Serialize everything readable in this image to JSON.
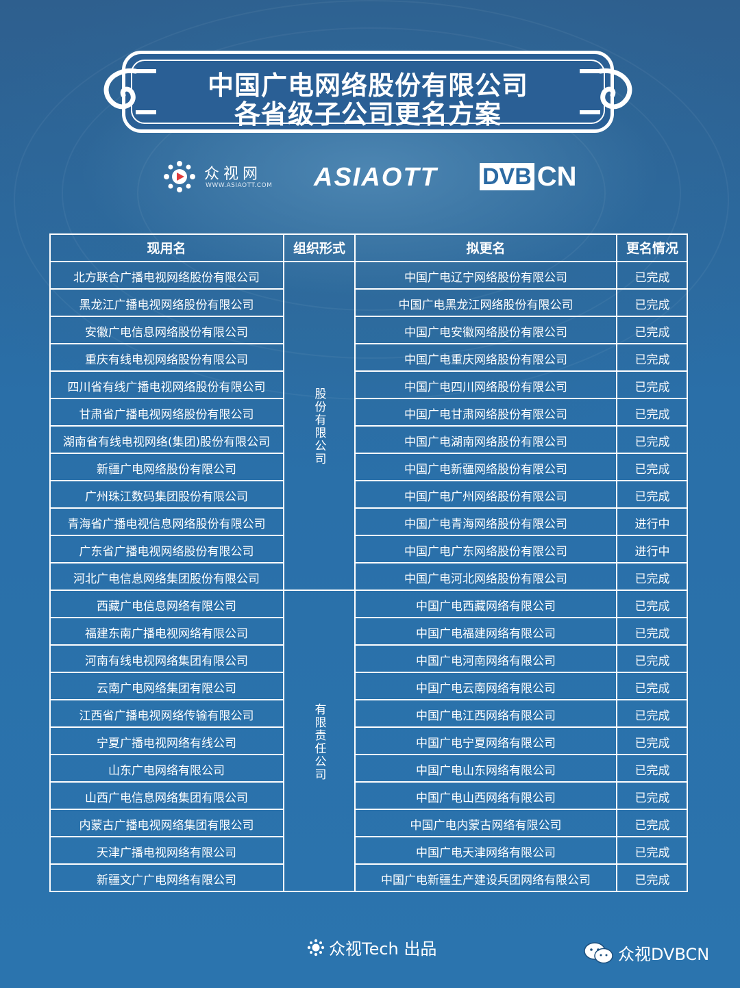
{
  "title": {
    "line1": "中国广电网络股份有限公司",
    "line2": "各省级子公司更名方案"
  },
  "logos": {
    "zsw_name": "众视网",
    "zsw_url": "WWW.ASIAOTT.COM",
    "asiaott": "ASIAOTT",
    "dvb": "DVB",
    "cn": "CN"
  },
  "table": {
    "headers": [
      "现用名",
      "组织形式",
      "拟更名",
      "更名情况"
    ],
    "org_groups": [
      {
        "label": "股份有限公司",
        "rows": 12
      },
      {
        "label": "有限责任公司",
        "rows": 11
      }
    ],
    "rows": [
      {
        "current": "北方联合广播电视网络股份有限公司",
        "new": "中国广电辽宁网络股份有限公司",
        "status": "已完成"
      },
      {
        "current": "黑龙江广播电视网络股份有限公司",
        "new": "中国广电黑龙江网络股份有限公司",
        "status": "已完成"
      },
      {
        "current": "安徽广电信息网络股份有限公司",
        "new": "中国广电安徽网络股份有限公司",
        "status": "已完成"
      },
      {
        "current": "重庆有线电视网络股份有限公司",
        "new": "中国广电重庆网络股份有限公司",
        "status": "已完成"
      },
      {
        "current": "四川省有线广播电视网络股份有限公司",
        "new": "中国广电四川网络股份有限公司",
        "status": "已完成"
      },
      {
        "current": "甘肃省广播电视网络股份有限公司",
        "new": "中国广电甘肃网络股份有限公司",
        "status": "已完成"
      },
      {
        "current": "湖南省有线电视网络(集团)股份有限公司",
        "new": "中国广电湖南网络股份有限公司",
        "status": "已完成"
      },
      {
        "current": "新疆广电网络股份有限公司",
        "new": "中国广电新疆网络股份有限公司",
        "status": "已完成"
      },
      {
        "current": "广州珠江数码集团股份有限公司",
        "new": "中国广电广州网络股份有限公司",
        "status": "已完成"
      },
      {
        "current": "青海省广播电视信息网络股份有限公司",
        "new": "中国广电青海网络股份有限公司",
        "status": "进行中"
      },
      {
        "current": "广东省广播电视网络股份有限公司",
        "new": "中国广电广东网络股份有限公司",
        "status": "进行中"
      },
      {
        "current": "河北广电信息网络集团股份有限公司",
        "new": "中国广电河北网络股份有限公司",
        "status": "已完成"
      },
      {
        "current": "西藏广电信息网络有限公司",
        "new": "中国广电西藏网络有限公司",
        "status": "已完成"
      },
      {
        "current": "福建东南广播电视网络有限公司",
        "new": "中国广电福建网络有限公司",
        "status": "已完成"
      },
      {
        "current": "河南有线电视网络集团有限公司",
        "new": "中国广电河南网络有限公司",
        "status": "已完成"
      },
      {
        "current": "云南广电网络集团有限公司",
        "new": "中国广电云南网络有限公司",
        "status": "已完成"
      },
      {
        "current": "江西省广播电视网络传输有限公司",
        "new": "中国广电江西网络有限公司",
        "status": "已完成"
      },
      {
        "current": "宁夏广播电视网络有线公司",
        "new": "中国广电宁夏网络有限公司",
        "status": "已完成"
      },
      {
        "current": "山东广电网络有限公司",
        "new": "中国广电山东网络有限公司",
        "status": "已完成"
      },
      {
        "current": "山西广电信息网络集团有限公司",
        "new": "中国广电山西网络有限公司",
        "status": "已完成"
      },
      {
        "current": "内蒙古广播电视网络集团有限公司",
        "new": "中国广电内蒙古网络有限公司",
        "status": "已完成"
      },
      {
        "current": "天津广播电视网络有限公司",
        "new": "中国广电天津网络有限公司",
        "status": "已完成"
      },
      {
        "current": "新疆文广广电网络有限公司",
        "new": "中国广电新疆生产建设兵团网络有限公司",
        "status": "已完成"
      }
    ]
  },
  "footer": {
    "credit": "众视Tech 出品",
    "wechat": "众视DVBCN"
  }
}
